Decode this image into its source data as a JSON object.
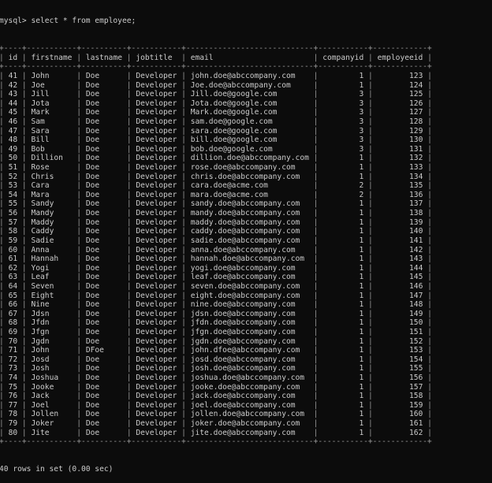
{
  "terminal": {
    "prompt": "mysql> ",
    "command": "select * from employee;",
    "footer": "40 rows in set (0.00 sec)",
    "colors": {
      "background": "#0c0c0c",
      "text": "#cccccc"
    }
  },
  "table": {
    "columns": [
      "id",
      "firstname",
      "lastname",
      "jobtitle",
      "email",
      "companyid",
      "employeeid"
    ],
    "rows": [
      [
        "41",
        "John",
        "Doe",
        "Developer",
        "john.doe@abccompany.com",
        "1",
        "123"
      ],
      [
        "42",
        "Joe",
        "Doe",
        "Developer",
        "Joe.doe@abccompany.com",
        "1",
        "124"
      ],
      [
        "43",
        "Jill",
        "Doe",
        "Developer",
        "Jill.doe@google.com",
        "3",
        "125"
      ],
      [
        "44",
        "Jota",
        "Doe",
        "Developer",
        "Jota.doe@google.com",
        "3",
        "126"
      ],
      [
        "45",
        "Mark",
        "Doe",
        "Developer",
        "Mark.doe@google.com",
        "3",
        "127"
      ],
      [
        "46",
        "Sam",
        "Doe",
        "Developer",
        "sam.doe@google.com",
        "3",
        "128"
      ],
      [
        "47",
        "Sara",
        "Doe",
        "Developer",
        "sara.doe@google.com",
        "3",
        "129"
      ],
      [
        "48",
        "Bill",
        "Doe",
        "Developer",
        "bill.doe@google.com",
        "3",
        "130"
      ],
      [
        "49",
        "Bob",
        "Doe",
        "Developer",
        "bob.doe@google.com",
        "3",
        "131"
      ],
      [
        "50",
        "Dillion",
        "Doe",
        "Developer",
        "dillion.doe@abccompany.com",
        "1",
        "132"
      ],
      [
        "51",
        "Rose",
        "Doe",
        "Developer",
        "rose.doe@abccompany.com",
        "1",
        "133"
      ],
      [
        "52",
        "Chris",
        "Doe",
        "Developer",
        "chris.doe@abccompany.com",
        "1",
        "134"
      ],
      [
        "53",
        "Cara",
        "Doe",
        "Developer",
        "cara.doe@acme.com",
        "2",
        "135"
      ],
      [
        "54",
        "Mara",
        "Doe",
        "Developer",
        "mara.doe@acme.com",
        "2",
        "136"
      ],
      [
        "55",
        "Sandy",
        "Doe",
        "Developer",
        "sandy.doe@abccompany.com",
        "1",
        "137"
      ],
      [
        "56",
        "Mandy",
        "Doe",
        "Developer",
        "mandy.doe@abccompany.com",
        "1",
        "138"
      ],
      [
        "57",
        "Maddy",
        "Doe",
        "Developer",
        "maddy.doe@abccompany.com",
        "1",
        "139"
      ],
      [
        "58",
        "Caddy",
        "Doe",
        "Developer",
        "caddy.doe@abccompany.com",
        "1",
        "140"
      ],
      [
        "59",
        "Sadie",
        "Doe",
        "Developer",
        "sadie.doe@abccompany.com",
        "1",
        "141"
      ],
      [
        "60",
        "Anna",
        "Doe",
        "Developer",
        "anna.doe@abccompany.com",
        "1",
        "142"
      ],
      [
        "61",
        "Hannah",
        "Doe",
        "Developer",
        "hannah.doe@abccompany.com",
        "1",
        "143"
      ],
      [
        "62",
        "Yogi",
        "Doe",
        "Developer",
        "yogi.doe@abccompany.com",
        "1",
        "144"
      ],
      [
        "63",
        "Leaf",
        "Doe",
        "Developer",
        "leaf.doe@abccompany.com",
        "1",
        "145"
      ],
      [
        "64",
        "Seven",
        "Doe",
        "Developer",
        "seven.doe@abccompany.com",
        "1",
        "146"
      ],
      [
        "65",
        "Eight",
        "Doe",
        "Developer",
        "eight.doe@abccompany.com",
        "1",
        "147"
      ],
      [
        "66",
        "Nine",
        "Doe",
        "Developer",
        "nine.doe@abccompany.com",
        "1",
        "148"
      ],
      [
        "67",
        "Jdsn",
        "Doe",
        "Developer",
        "jdsn.doe@abccompany.com",
        "1",
        "149"
      ],
      [
        "68",
        "Jfdn",
        "Doe",
        "Developer",
        "jfdn.doe@abccompany.com",
        "1",
        "150"
      ],
      [
        "69",
        "Jfgn",
        "Doe",
        "Developer",
        "jfgn.doe@abccompany.com",
        "1",
        "151"
      ],
      [
        "70",
        "Jgdn",
        "Doe",
        "Developer",
        "jgdn.doe@abccompany.com",
        "1",
        "152"
      ],
      [
        "71",
        "John",
        "DFoe",
        "Developer",
        "john.dfoe@abccompany.com",
        "1",
        "153"
      ],
      [
        "72",
        "Josd",
        "Doe",
        "Developer",
        "josd.doe@abccompany.com",
        "1",
        "154"
      ],
      [
        "73",
        "Josh",
        "Doe",
        "Developer",
        "josh.doe@abccompany.com",
        "1",
        "155"
      ],
      [
        "74",
        "Joshua",
        "Doe",
        "Developer",
        "joshua.doe@abccompany.com",
        "1",
        "156"
      ],
      [
        "75",
        "Jooke",
        "Doe",
        "Developer",
        "jooke.doe@abccompany.com",
        "1",
        "157"
      ],
      [
        "76",
        "Jack",
        "Doe",
        "Developer",
        "jack.doe@abccompany.com",
        "1",
        "158"
      ],
      [
        "77",
        "Joel",
        "Doe",
        "Developer",
        "joel.doe@abccompany.com",
        "1",
        "159"
      ],
      [
        "78",
        "Jollen",
        "Doe",
        "Developer",
        "jollen.doe@abccompany.com",
        "1",
        "160"
      ],
      [
        "79",
        "Joker",
        "Doe",
        "Developer",
        "joker.doe@abccompany.com",
        "1",
        "161"
      ],
      [
        "80",
        "Jite",
        "Doe",
        "Developer",
        "jite.doe@abccompany.com",
        "1",
        "162"
      ]
    ]
  }
}
